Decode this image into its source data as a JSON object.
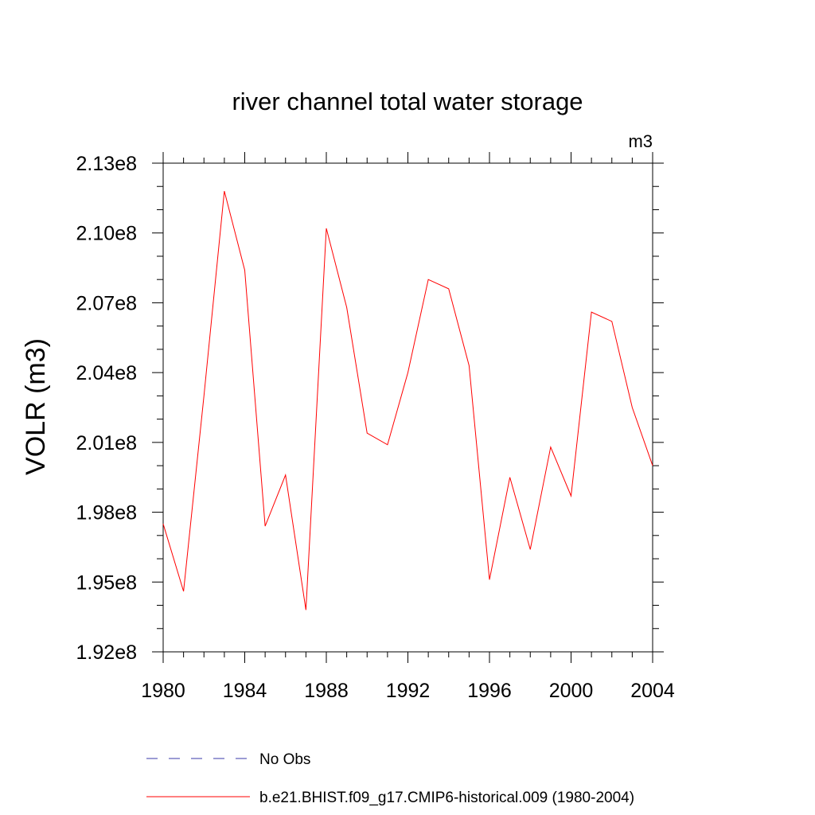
{
  "chart_data": {
    "type": "line",
    "title": "river channel total water storage",
    "units_label": "m3",
    "ylabel": "VOLR  (m3)",
    "xlabel": "",
    "xlim": [
      1980,
      2004
    ],
    "ylim": [
      192000000.0,
      213000000.0
    ],
    "x_ticks": [
      1980,
      1984,
      1988,
      1992,
      1996,
      2000,
      2004
    ],
    "x_tick_labels": [
      "1980",
      "1984",
      "1988",
      "1992",
      "1996",
      "2000",
      "2004"
    ],
    "y_ticks": [
      192000000.0,
      195000000.0,
      198000000.0,
      201000000.0,
      204000000.0,
      207000000.0,
      210000000.0,
      213000000.0
    ],
    "y_tick_labels": [
      "1.92e8",
      "1.95e8",
      "1.98e8",
      "2.01e8",
      "2.04e8",
      "2.07e8",
      "2.10e8",
      "2.13e8"
    ],
    "x": [
      1980,
      1981,
      1982,
      1983,
      1984,
      1985,
      1986,
      1987,
      1988,
      1989,
      1990,
      1991,
      1992,
      1993,
      1994,
      1995,
      1996,
      1997,
      1998,
      1999,
      2000,
      2001,
      2002,
      2003,
      2004
    ],
    "series": [
      {
        "name": "b.e21.BHIST.f09_g17.CMIP6-historical.009 (1980-2004)",
        "color": "#ff0000",
        "values": [
          197500000.0,
          194600000.0,
          203000000.0,
          211800000.0,
          208400000.0,
          197400000.0,
          199600000.0,
          193800000.0,
          210200000.0,
          206800000.0,
          201400000.0,
          200900000.0,
          204000000.0,
          208000000.0,
          207600000.0,
          204300000.0,
          195100000.0,
          199500000.0,
          196400000.0,
          200800000.0,
          198700000.0,
          206600000.0,
          206200000.0,
          202500000.0,
          200000000.0
        ]
      }
    ],
    "legend": {
      "placement": "bottom",
      "entries": [
        {
          "label": "No Obs",
          "color": "#3a3aa8",
          "style": "dashed"
        },
        {
          "label": "b.e21.BHIST.f09_g17.CMIP6-historical.009 (1980-2004)",
          "color": "#ff0000",
          "style": "solid"
        }
      ]
    },
    "grid": false
  }
}
